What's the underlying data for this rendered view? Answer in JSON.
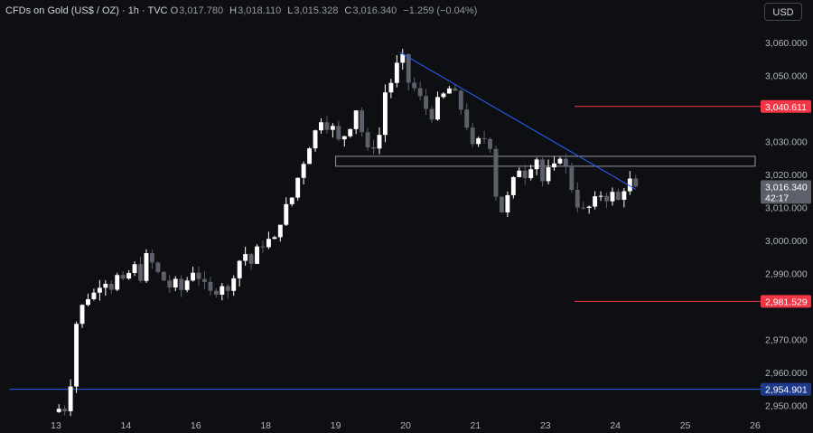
{
  "header": {
    "symbol": "CFDs on Gold (US$ / OZ) · 1h · TVC",
    "open_key": "O",
    "open": "3,017.780",
    "high_key": "H",
    "high": "3,018.110",
    "low_key": "L",
    "low": "3,015.328",
    "close_key": "C",
    "close": "3,016.340",
    "change": "−1.259 (−0.04%)"
  },
  "currency_button": "USD",
  "price_tag": {
    "price": "3,016.340",
    "countdown": "42:17",
    "color": "#5d606b"
  },
  "level_tags": [
    {
      "label": "3,040.611",
      "value": 3040.611,
      "color": "#f23645"
    },
    {
      "label": "2,981.529",
      "value": 2981.529,
      "color": "#f23645"
    },
    {
      "label": "2,954.901",
      "value": 2954.901,
      "color": "#1e3a8a"
    }
  ],
  "colors": {
    "background": "#0e0f12",
    "candle_up": "#ffffff",
    "candle_down": "#5d606b",
    "trendline": "#2962ff",
    "zone_border": "#9598a1"
  },
  "chart_data": {
    "type": "candlestick",
    "y_axis": {
      "ticks": [
        "3,060.000",
        "3,050.000",
        "3,030.000",
        "3,020.000",
        "3,010.000",
        "3,000.000",
        "2,990.000",
        "2,970.000",
        "2,960.000",
        "2,950.000"
      ],
      "tick_values": [
        3060,
        3050,
        3030,
        3020,
        3010,
        3000,
        2990,
        2970,
        2960,
        2950
      ],
      "range": [
        2948,
        3065
      ]
    },
    "x_axis": {
      "labels": [
        "13",
        "14",
        "16",
        "18",
        "19",
        "20",
        "21",
        "23",
        "24",
        "25",
        "26"
      ],
      "label_bars": [
        0,
        12,
        24,
        36,
        48,
        60,
        72,
        84,
        96,
        108,
        120
      ],
      "bar_count": 121
    },
    "zone": {
      "top": 3025.5,
      "bottom": 3022.5,
      "from_bar": 48,
      "to_bar": 120
    },
    "trendline": {
      "from_bar": 59,
      "from_value": 3057,
      "to_bar": 99.5,
      "to_value": 3015.5
    },
    "horizontal_lines": [
      {
        "value": 3040.611,
        "from_bar": 89,
        "color": "#f23645"
      },
      {
        "value": 2981.529,
        "from_bar": 89,
        "color": "#f23645"
      },
      {
        "value": 2954.901,
        "from_bar": -8,
        "color": "#2962ff"
      }
    ],
    "last_price": 3016.34,
    "close_path": [
      [
        0,
        2949
      ],
      [
        1,
        2949
      ],
      [
        2,
        2957
      ],
      [
        3,
        2975
      ],
      [
        4,
        2980
      ],
      [
        5,
        2983
      ],
      [
        6,
        2984
      ],
      [
        7,
        2987
      ],
      [
        8,
        2988
      ],
      [
        9,
        2986
      ],
      [
        10,
        2989
      ],
      [
        11,
        2987
      ],
      [
        12,
        2990
      ],
      [
        13,
        2992
      ],
      [
        14,
        2989
      ],
      [
        15,
        2995
      ],
      [
        16,
        2993
      ],
      [
        17,
        2990
      ],
      [
        18,
        2988
      ],
      [
        19,
        2986
      ],
      [
        20,
        2987
      ],
      [
        21,
        2985
      ],
      [
        22,
        2988
      ],
      [
        23,
        2991
      ],
      [
        24,
        2989
      ],
      [
        25,
        2986
      ],
      [
        26,
        2984
      ],
      [
        27,
        2985
      ],
      [
        28,
        2987
      ],
      [
        29,
        2984
      ],
      [
        30,
        2990
      ],
      [
        31,
        2994
      ],
      [
        32,
        2996
      ],
      [
        33,
        2993
      ],
      [
        34,
        2997
      ],
      [
        35,
        2999
      ],
      [
        36,
        3000
      ],
      [
        37,
        3000
      ],
      [
        38,
        3006
      ],
      [
        39,
        3010
      ],
      [
        40,
        3013
      ],
      [
        41,
        3019
      ],
      [
        42,
        3024
      ],
      [
        43,
        3029
      ],
      [
        44,
        3033
      ],
      [
        45,
        3037
      ],
      [
        46,
        3035
      ],
      [
        47,
        3034
      ],
      [
        48,
        3030
      ],
      [
        49,
        3032
      ],
      [
        50,
        3035
      ],
      [
        51,
        3040
      ],
      [
        52,
        3033
      ],
      [
        53,
        3027
      ],
      [
        54,
        3029
      ],
      [
        55,
        3032
      ],
      [
        56,
        3045
      ],
      [
        57,
        3048
      ],
      [
        58,
        3053
      ],
      [
        59,
        3055
      ],
      [
        60,
        3048
      ],
      [
        61,
        3046
      ],
      [
        62,
        3043
      ],
      [
        63,
        3040
      ],
      [
        64,
        3038
      ],
      [
        65,
        3042
      ],
      [
        66,
        3044
      ],
      [
        67,
        3046
      ],
      [
        68,
        3044
      ],
      [
        69,
        3040
      ],
      [
        70,
        3035
      ],
      [
        71,
        3028
      ],
      [
        72,
        3030
      ],
      [
        73,
        3031
      ],
      [
        74,
        3029
      ],
      [
        75,
        3014
      ],
      [
        76,
        3009
      ],
      [
        77,
        3013
      ],
      [
        78,
        3018
      ],
      [
        79,
        3022
      ],
      [
        80,
        3020
      ],
      [
        81,
        3023
      ],
      [
        82,
        3025
      ],
      [
        83,
        3018
      ],
      [
        84,
        3021
      ],
      [
        85,
        3022
      ],
      [
        86,
        3026
      ],
      [
        87,
        3022
      ],
      [
        88,
        3016
      ],
      [
        89,
        3011
      ],
      [
        90,
        3009
      ],
      [
        91,
        3010
      ],
      [
        92,
        3012
      ],
      [
        93,
        3014
      ],
      [
        94,
        3013
      ],
      [
        95,
        3014
      ],
      [
        96,
        3012
      ],
      [
        97,
        3016
      ],
      [
        98,
        3018
      ],
      [
        99,
        3016.34
      ]
    ]
  }
}
